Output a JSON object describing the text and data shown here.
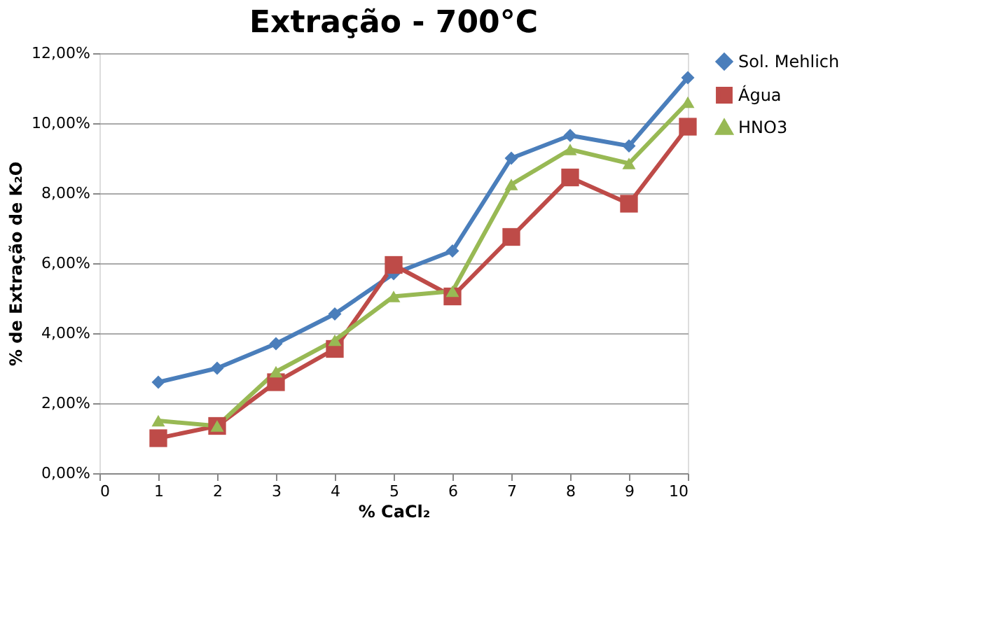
{
  "chart_data": {
    "type": "line",
    "title": "Extração - 700°C",
    "xlabel": "% CaCl₂",
    "ylabel": "% de Extração de K₂O",
    "x": [
      1,
      2,
      3,
      4,
      5,
      6,
      7,
      8,
      9,
      10
    ],
    "series": [
      {
        "name": "Sol. Mehlich",
        "color": "#4a7ebb",
        "marker": "diamond",
        "values": [
          2.6,
          3.0,
          3.7,
          4.55,
          5.7,
          6.35,
          9.0,
          9.65,
          9.35,
          11.3
        ]
      },
      {
        "name": "Água",
        "color": "#be4b48",
        "marker": "square",
        "values": [
          1.0,
          1.35,
          2.6,
          3.55,
          5.95,
          5.05,
          6.75,
          8.45,
          7.7,
          9.9
        ]
      },
      {
        "name": "HNO3",
        "color": "#98b954",
        "marker": "triangle",
        "values": [
          1.5,
          1.35,
          2.9,
          3.8,
          5.05,
          5.2,
          8.25,
          9.25,
          8.85,
          10.6
        ]
      }
    ],
    "xlim": [
      0,
      10
    ],
    "xticks": [
      0,
      1,
      2,
      3,
      4,
      5,
      6,
      7,
      8,
      9,
      10
    ],
    "ylim": [
      0,
      12
    ],
    "yticks": [
      {
        "value": 0,
        "label": "0,00%"
      },
      {
        "value": 2,
        "label": "2,00%"
      },
      {
        "value": 4,
        "label": "4,00%"
      },
      {
        "value": 6,
        "label": "6,00%"
      },
      {
        "value": 8,
        "label": "8,00%"
      },
      {
        "value": 10,
        "label": "10,00%"
      },
      {
        "value": 12,
        "label": "12,00%"
      }
    ],
    "grid": "y",
    "legend": "right",
    "line_style": "solid"
  }
}
